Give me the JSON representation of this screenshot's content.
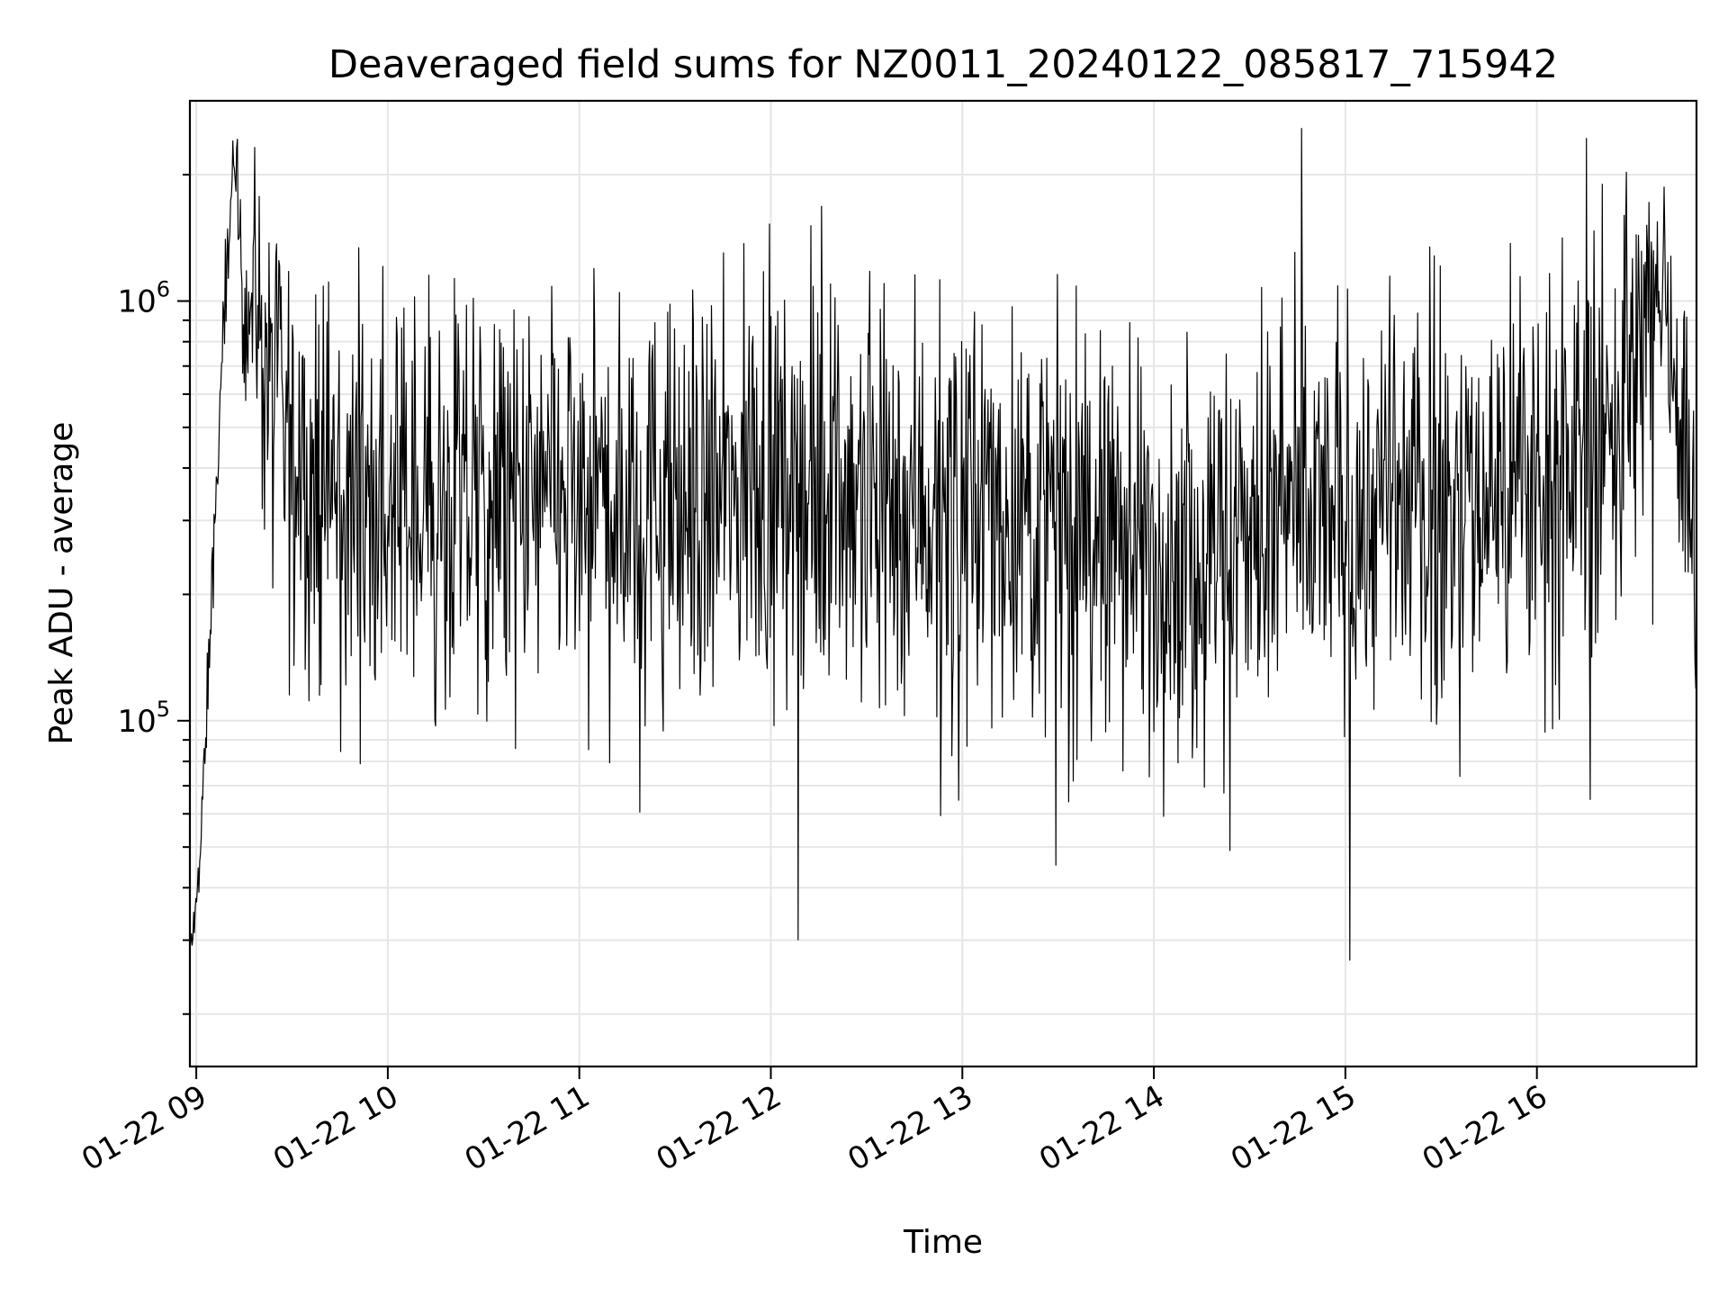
{
  "chart_data": {
    "type": "line",
    "title": "Deaveraged field sums for NZ0011_20240122_085817_715942",
    "xlabel": "Time",
    "ylabel": "Peak ADU - average",
    "yscale": "log",
    "grid": true,
    "xlim": [
      "2024-01-22 08:58",
      "2024-01-22 16:50"
    ],
    "ylim": [
      15000,
      3000000
    ],
    "x_ticks": [
      "01-22 09",
      "01-22 10",
      "01-22 11",
      "01-22 12",
      "01-22 13",
      "01-22 14",
      "01-22 15",
      "01-22 16"
    ],
    "y_ticks": [
      {
        "base": "10",
        "exp": "5",
        "value": 100000
      },
      {
        "base": "10",
        "exp": "6",
        "value": 1000000
      }
    ],
    "series": [
      {
        "color": "#000000",
        "time": [
          "2024-01-22 08:58",
          "2024-01-22 09:00",
          "2024-01-22 09:02",
          "2024-01-22 09:04",
          "2024-01-22 09:06",
          "2024-01-22 09:08",
          "2024-01-22 09:10",
          "2024-01-22 09:12",
          "2024-01-22 09:14",
          "2024-01-22 09:16",
          "2024-01-22 09:18",
          "2024-01-22 09:22",
          "2024-01-22 09:26",
          "2024-01-22 09:30",
          "2024-01-22 09:35",
          "2024-01-22 09:40",
          "2024-01-22 09:50",
          "2024-01-22 10:00",
          "2024-01-22 10:15",
          "2024-01-22 10:30",
          "2024-01-22 10:45",
          "2024-01-22 11:00",
          "2024-01-22 11:15",
          "2024-01-22 11:30",
          "2024-01-22 11:45",
          "2024-01-22 12:00",
          "2024-01-22 12:15",
          "2024-01-22 12:30",
          "2024-01-22 12:45",
          "2024-01-22 13:00",
          "2024-01-22 13:15",
          "2024-01-22 13:30",
          "2024-01-22 13:45",
          "2024-01-22 14:00",
          "2024-01-22 14:15",
          "2024-01-22 14:30",
          "2024-01-22 14:45",
          "2024-01-22 15:00",
          "2024-01-22 15:15",
          "2024-01-22 15:30",
          "2024-01-22 15:45",
          "2024-01-22 16:00",
          "2024-01-22 16:10",
          "2024-01-22 16:20",
          "2024-01-22 16:30",
          "2024-01-22 16:35",
          "2024-01-22 16:40",
          "2024-01-22 16:45",
          "2024-01-22 16:50"
        ],
        "values": [
          28000,
          35000,
          60000,
          150000,
          300000,
          700000,
          1500000,
          1900000,
          1300000,
          1000000,
          1100000,
          650000,
          500000,
          420000,
          380000,
          350000,
          330000,
          320000,
          310000,
          330000,
          320000,
          340000,
          330000,
          320000,
          330000,
          400000,
          380000,
          360000,
          340000,
          330000,
          320000,
          300000,
          280000,
          250000,
          260000,
          280000,
          300000,
          310000,
          320000,
          330000,
          350000,
          380000,
          420000,
          480000,
          600000,
          900000,
          1100000,
          600000,
          200000
        ],
        "noise_spread": [
          0.1,
          0.1,
          0.15,
          0.2,
          0.2,
          0.2,
          0.2,
          0.2,
          0.4,
          0.5,
          0.6,
          0.7,
          0.8,
          0.8,
          0.8,
          0.8,
          0.8,
          0.8,
          0.8,
          0.8,
          0.8,
          0.8,
          0.8,
          0.8,
          0.8,
          0.8,
          0.8,
          0.8,
          0.8,
          0.8,
          0.8,
          0.8,
          0.8,
          0.8,
          0.8,
          0.8,
          0.8,
          0.8,
          0.8,
          0.8,
          0.8,
          0.8,
          0.8,
          0.8,
          0.8,
          0.7,
          0.6,
          0.7,
          0.8
        ]
      }
    ]
  }
}
